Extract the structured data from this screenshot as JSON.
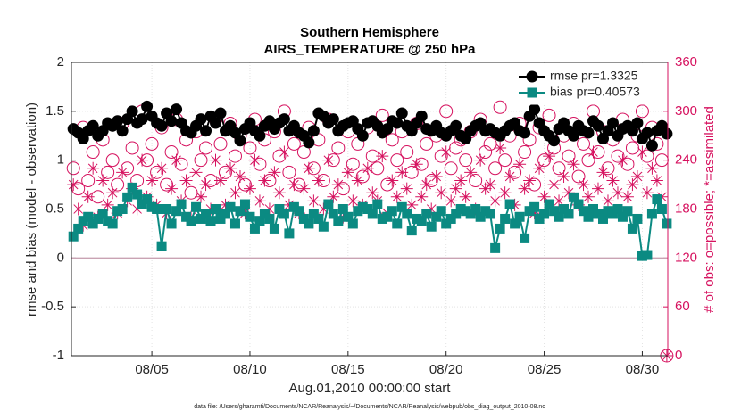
{
  "chart_data": {
    "type": "line",
    "title": "Southern Hemisphere",
    "subtitle": "AIRS_TEMPERATURE @ 250 hPa",
    "xlabel": "Aug.01,2010 00:00:00 start",
    "ylabel": "rmse and bias (model - observation)",
    "y2label": "# of obs: o=possible; *=assimilated",
    "footnote": "data file: /Users/gharamti/Documents/NCAR/Reanalysis/~/Documents/NCAR/Reanalysis/webpub/obs_diag_output_2010-08.nc",
    "xlim": [
      -0.1,
      30.3
    ],
    "xticks": [
      {
        "value": 4,
        "label": "08/05"
      },
      {
        "value": 9,
        "label": "08/10"
      },
      {
        "value": 14,
        "label": "08/15"
      },
      {
        "value": 19,
        "label": "08/20"
      },
      {
        "value": 24,
        "label": "08/25"
      },
      {
        "value": 29,
        "label": "08/30"
      }
    ],
    "ylim": [
      -1,
      2
    ],
    "yticks": [
      -1,
      -0.5,
      0,
      0.5,
      1,
      1.5,
      2
    ],
    "y2lim": [
      0,
      360
    ],
    "y2ticks": [
      0,
      60,
      120,
      180,
      240,
      300,
      360
    ],
    "grid": true,
    "legend": "northeast",
    "zero_line_color": "#c9a3b3",
    "x": [
      0,
      0.25,
      0.5,
      0.75,
      1,
      1.25,
      1.5,
      1.75,
      2,
      2.25,
      2.5,
      2.75,
      3,
      3.25,
      3.5,
      3.75,
      4,
      4.25,
      4.5,
      4.75,
      5,
      5.25,
      5.5,
      5.75,
      6,
      6.25,
      6.5,
      6.75,
      7,
      7.25,
      7.5,
      7.75,
      8,
      8.25,
      8.5,
      8.75,
      9,
      9.25,
      9.5,
      9.75,
      10,
      10.25,
      10.5,
      10.75,
      11,
      11.25,
      11.5,
      11.75,
      12,
      12.25,
      12.5,
      12.75,
      13,
      13.25,
      13.5,
      13.75,
      14,
      14.25,
      14.5,
      14.75,
      15,
      15.25,
      15.5,
      15.75,
      16,
      16.25,
      16.5,
      16.75,
      17,
      17.25,
      17.5,
      17.75,
      18,
      18.25,
      18.5,
      18.75,
      19,
      19.25,
      19.5,
      19.75,
      20,
      20.25,
      20.5,
      20.75,
      21,
      21.25,
      21.5,
      21.75,
      22,
      22.25,
      22.5,
      22.75,
      23,
      23.25,
      23.5,
      23.75,
      24,
      24.25,
      24.5,
      24.75,
      25,
      25.25,
      25.5,
      25.75,
      26,
      26.25,
      26.5,
      26.75,
      27,
      27.25,
      27.5,
      27.75,
      28,
      28.25,
      28.5,
      28.75,
      29,
      29.25,
      29.5,
      29.75,
      30,
      30.25
    ],
    "series": [
      {
        "name": "rmse pr=1.3325",
        "color": "#000000",
        "marker": "circle",
        "line": true,
        "values": [
          1.32,
          1.28,
          1.22,
          1.3,
          1.35,
          1.25,
          1.3,
          1.38,
          1.35,
          1.4,
          1.3,
          1.42,
          1.5,
          1.38,
          1.42,
          1.55,
          1.45,
          1.38,
          1.35,
          1.48,
          1.4,
          1.52,
          1.38,
          1.3,
          1.28,
          1.35,
          1.42,
          1.3,
          1.45,
          1.38,
          1.48,
          1.3,
          1.35,
          1.28,
          1.2,
          1.32,
          1.38,
          1.3,
          1.25,
          1.35,
          1.4,
          1.32,
          1.38,
          1.42,
          1.3,
          1.35,
          1.28,
          1.25,
          1.18,
          1.3,
          1.48,
          1.45,
          1.38,
          1.42,
          1.3,
          1.35,
          1.38,
          1.4,
          1.32,
          1.25,
          1.38,
          1.4,
          1.35,
          1.28,
          1.32,
          1.4,
          1.38,
          1.48,
          1.35,
          1.3,
          1.38,
          1.45,
          1.32,
          1.3,
          1.35,
          1.28,
          1.25,
          1.3,
          1.35,
          1.25,
          1.22,
          1.3,
          1.35,
          1.38,
          1.3,
          1.32,
          1.28,
          1.25,
          1.3,
          1.35,
          1.38,
          1.3,
          1.28,
          1.45,
          1.52,
          1.38,
          1.3,
          1.25,
          1.2,
          1.32,
          1.38,
          1.3,
          1.25,
          1.35,
          1.3,
          1.28,
          1.4,
          1.35,
          1.22,
          1.3,
          1.38,
          1.25,
          1.32,
          1.35,
          1.3,
          1.38,
          1.22,
          1.28,
          1.15,
          1.3,
          1.35,
          1.27
        ]
      },
      {
        "name": "bias pr=0.40573",
        "color": "#0b8a82",
        "marker": "square",
        "line": true,
        "values": [
          0.22,
          0.3,
          0.38,
          0.42,
          0.35,
          0.4,
          0.45,
          0.38,
          0.35,
          0.48,
          0.5,
          0.62,
          0.72,
          0.65,
          0.55,
          0.6,
          0.52,
          0.5,
          0.12,
          0.5,
          0.35,
          0.48,
          0.55,
          0.42,
          0.38,
          0.52,
          0.4,
          0.45,
          0.38,
          0.5,
          0.4,
          0.45,
          0.52,
          0.35,
          0.48,
          0.55,
          0.42,
          0.3,
          0.38,
          0.45,
          0.4,
          0.3,
          0.5,
          0.45,
          0.25,
          0.52,
          0.48,
          0.4,
          0.35,
          0.45,
          0.4,
          0.32,
          0.55,
          0.45,
          0.38,
          0.5,
          0.42,
          0.35,
          0.48,
          0.52,
          0.5,
          0.45,
          0.55,
          0.4,
          0.42,
          0.48,
          0.35,
          0.52,
          0.45,
          0.28,
          0.4,
          0.38,
          0.45,
          0.32,
          0.42,
          0.48,
          0.35,
          0.4,
          0.45,
          0.5,
          0.48,
          0.45,
          0.5,
          0.42,
          0.48,
          0.45,
          0.1,
          0.3,
          0.4,
          0.55,
          0.35,
          0.42,
          0.2,
          0.48,
          0.52,
          0.4,
          0.45,
          0.55,
          0.48,
          0.42,
          0.5,
          0.45,
          0.62,
          0.55,
          0.48,
          0.42,
          0.5,
          0.45,
          0.4,
          0.48,
          0.45,
          0.5,
          0.42,
          0.48,
          0.3,
          0.4,
          0.02,
          0.03,
          0.45,
          0.6,
          0.5,
          0.35
        ]
      },
      {
        "color": "#d6125f",
        "marker": "open-circle",
        "line": false,
        "axis": "y2",
        "values": [
          230,
          205,
          280,
          215,
          250,
          195,
          265,
          225,
          240,
          210,
          285,
          230,
          255,
          215,
          300,
          240,
          260,
          225,
          280,
          210,
          250,
          290,
          235,
          265,
          200,
          275,
          240,
          255,
          215,
          290,
          260,
          225,
          285,
          245,
          270,
          210,
          255,
          290,
          235,
          265,
          215,
          275,
          245,
          300,
          225,
          260,
          210,
          250,
          280,
          230,
          265,
          215,
          290,
          240,
          255,
          205,
          275,
          235,
          260,
          220,
          280,
          245,
          230,
          295,
          210,
          265,
          240,
          275,
          250,
          225,
          285,
          235,
          260,
          215,
          270,
          245,
          300,
          230,
          255,
          265,
          240,
          275,
          215,
          290,
          250,
          260,
          230,
          305,
          240,
          270,
          225,
          285,
          250,
          265,
          210,
          280,
          240,
          295,
          255,
          230,
          270,
          245,
          285,
          220,
          260,
          240,
          300,
          250,
          275,
          230,
          265,
          245,
          290,
          235,
          255,
          270,
          300,
          245,
          280,
          260,
          240,
          0
        ]
      },
      {
        "color": "#d6125f",
        "marker": "star",
        "line": false,
        "axis": "y2",
        "values": [
          210,
          180,
          160,
          195,
          230,
          170,
          215,
          185,
          200,
          175,
          225,
          190,
          205,
          180,
          240,
          195,
          215,
          185,
          230,
          175,
          205,
          240,
          190,
          215,
          170,
          225,
          195,
          210,
          180,
          240,
          215,
          185,
          230,
          200,
          220,
          175,
          205,
          240,
          190,
          215,
          180,
          225,
          200,
          250,
          185,
          210,
          175,
          205,
          230,
          190,
          215,
          180,
          240,
          195,
          210,
          170,
          225,
          190,
          215,
          185,
          230,
          200,
          190,
          245,
          175,
          215,
          195,
          225,
          205,
          185,
          235,
          195,
          210,
          180,
          220,
          200,
          250,
          190,
          205,
          215,
          195,
          225,
          180,
          240,
          205,
          210,
          190,
          255,
          200,
          220,
          185,
          235,
          205,
          215,
          175,
          230,
          195,
          245,
          210,
          190,
          220,
          200,
          235,
          185,
          210,
          195,
          250,
          205,
          225,
          190,
          215,
          200,
          240,
          195,
          210,
          220,
          250,
          200,
          230,
          215,
          195,
          0
        ]
      }
    ]
  }
}
